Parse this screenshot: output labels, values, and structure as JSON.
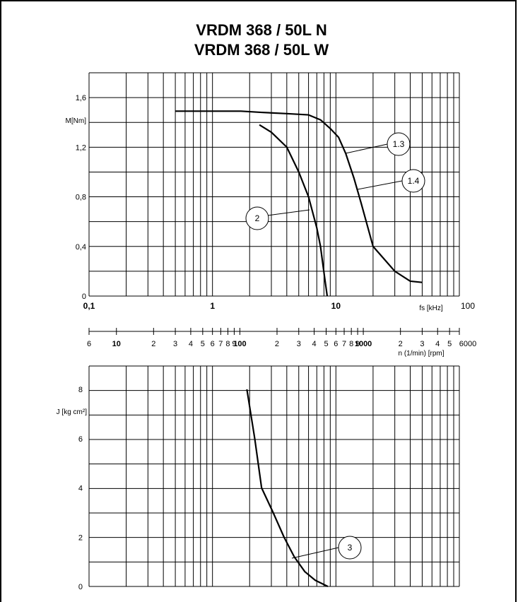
{
  "chart_data": [
    {
      "type": "line",
      "title": "VRDM 368 / 50L N",
      "subtitle": "VRDM 368 / 50L W",
      "ylabel": "M[Nm]",
      "xlabel": "fs [kHz]",
      "x_scale": "log",
      "xlim": [
        0.1,
        100
      ],
      "ylim": [
        0,
        1.6
      ],
      "x_tick_labels": [
        "0,1",
        "1",
        "10",
        "100"
      ],
      "y_tick_labels": [
        "0",
        "0,4",
        "0,8",
        "1,2",
        "1,6"
      ],
      "grid": true,
      "series": [
        {
          "name": "1.3",
          "x": [
            0.5,
            1,
            1.7,
            2.5,
            4,
            6,
            7.5,
            9,
            10.5,
            12
          ],
          "y": [
            1.49,
            1.49,
            1.49,
            1.48,
            1.47,
            1.46,
            1.42,
            1.35,
            1.28,
            1.15
          ]
        },
        {
          "name": "1.4",
          "x": [
            12,
            14,
            16,
            20,
            30,
            40,
            50
          ],
          "y": [
            1.15,
            0.95,
            0.75,
            0.4,
            0.2,
            0.12,
            0.11
          ]
        },
        {
          "name": "2",
          "x": [
            2.4,
            3,
            4,
            5,
            6,
            7,
            7.5,
            8.1,
            8.5
          ],
          "y": [
            1.38,
            1.32,
            1.2,
            1.0,
            0.8,
            0.55,
            0.4,
            0.15,
            0.0
          ]
        }
      ]
    },
    {
      "type": "axis",
      "xlabel": "n (1/min) [rpm]",
      "x_scale": "log",
      "xlim": [
        6,
        6000
      ],
      "tick_labels": [
        "6",
        "10",
        "2",
        "3",
        "4",
        "5",
        "6",
        "7",
        "8",
        "9",
        "100",
        "2",
        "3",
        "4",
        "5",
        "6",
        "7",
        "8",
        "9",
        "1000",
        "2",
        "3",
        "4",
        "5",
        "6000"
      ]
    },
    {
      "type": "line",
      "ylabel": "J [kg cm²]",
      "x_scale": "log",
      "xlim": [
        0.1,
        100
      ],
      "ylim": [
        0,
        9
      ],
      "y_tick_labels": [
        "0",
        "2",
        "4",
        "6",
        "8"
      ],
      "grid": true,
      "series": [
        {
          "name": "3",
          "x": [
            1.9,
            2.2,
            2.5,
            3.1,
            3.8,
            4.6,
            5.6,
            6.8,
            8.6
          ],
          "y": [
            8.0,
            6.0,
            4.0,
            3.0,
            2.0,
            1.2,
            0.6,
            0.25,
            0.0
          ]
        }
      ]
    }
  ]
}
